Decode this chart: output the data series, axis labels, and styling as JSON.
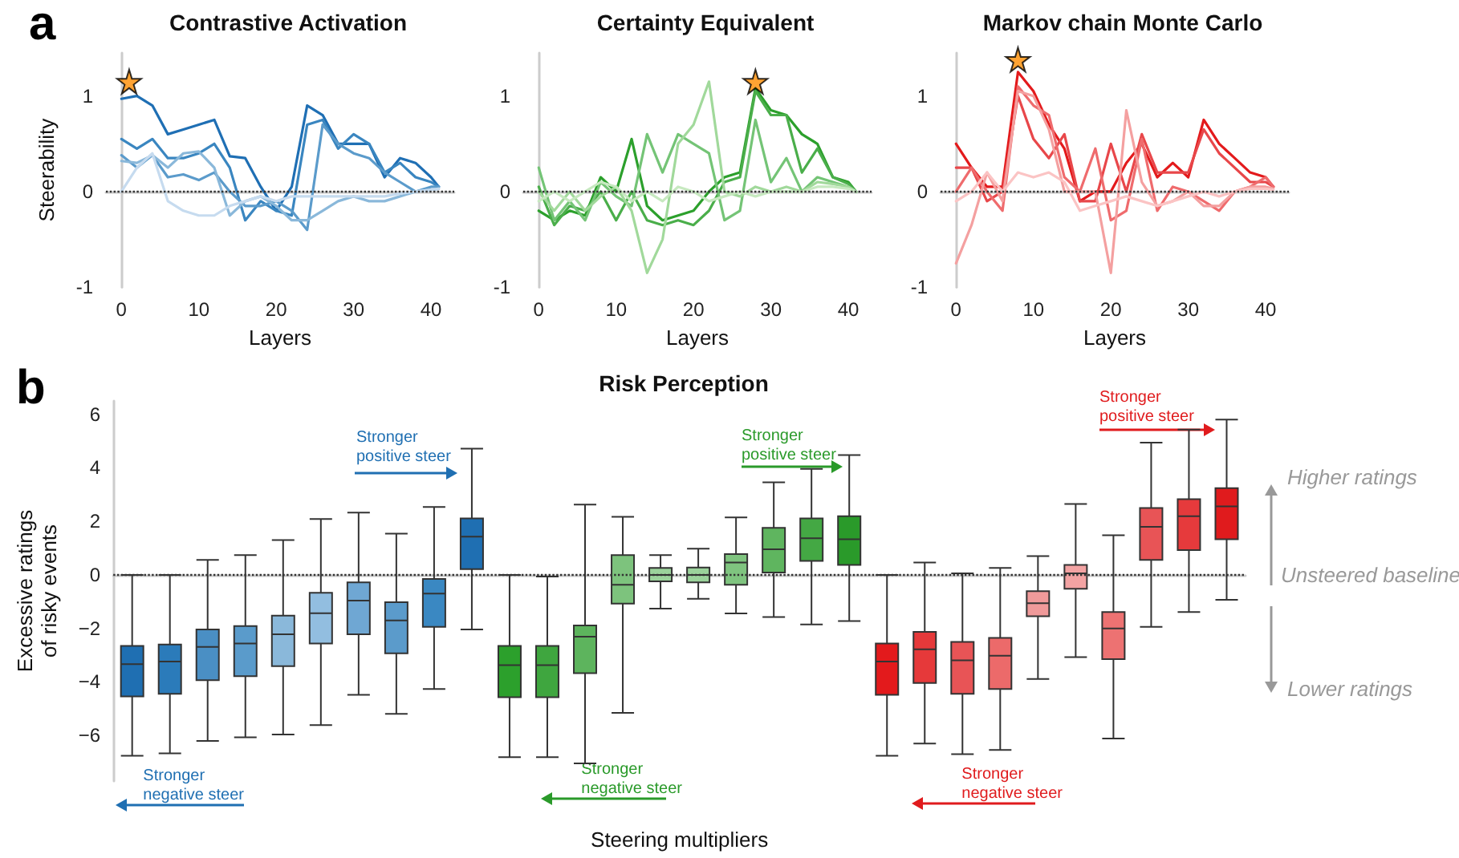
{
  "chart_data": [
    {
      "type": "line",
      "title": "Contrastive Activation",
      "xlabel": "Layers",
      "ylabel": "Steerability",
      "annotations": [
        "a"
      ],
      "marker": "none",
      "x": [
        0,
        2,
        4,
        6,
        8,
        10,
        12,
        14,
        16,
        18,
        20,
        22,
        24,
        26,
        28,
        30,
        32,
        34,
        36,
        38,
        40,
        41
      ],
      "series": [
        {
          "color": "#1f6fb4",
          "values": [
            0.97,
            1.0,
            0.9,
            0.6,
            0.65,
            0.7,
            0.75,
            0.37,
            0.35,
            0.05,
            -0.2,
            0.05,
            0.9,
            0.8,
            0.5,
            0.5,
            0.5,
            0.15,
            0.35,
            0.3,
            0.15,
            0.05
          ]
        },
        {
          "color": "#3a86c0",
          "values": [
            0.55,
            0.45,
            0.55,
            0.35,
            0.35,
            0.4,
            0.5,
            0.25,
            -0.3,
            -0.1,
            -0.2,
            -0.25,
            0.7,
            0.75,
            0.45,
            0.6,
            0.5,
            0.2,
            0.3,
            0.15,
            0.1,
            0.05
          ]
        },
        {
          "color": "#5b9bcb",
          "values": [
            0.38,
            0.25,
            0.38,
            0.15,
            0.18,
            0.12,
            0.2,
            0.0,
            -0.15,
            -0.15,
            -0.1,
            -0.2,
            -0.4,
            0.7,
            0.5,
            0.4,
            0.35,
            0.2,
            0.1,
            0.0,
            0.05,
            0.05
          ]
        },
        {
          "color": "#8ab8da",
          "values": [
            0.32,
            0.3,
            0.38,
            0.25,
            0.4,
            0.42,
            0.25,
            -0.25,
            -0.1,
            -0.05,
            -0.15,
            -0.3,
            -0.3,
            -0.2,
            -0.1,
            -0.05,
            -0.1,
            -0.1,
            -0.05,
            0.0,
            0.02,
            0.03
          ]
        },
        {
          "color": "#c6dbef",
          "values": [
            0.0,
            0.25,
            0.4,
            -0.1,
            -0.2,
            -0.25,
            -0.25,
            -0.15,
            -0.1,
            -0.05,
            -0.1,
            -0.05,
            -0.05,
            -0.05,
            -0.05,
            -0.05,
            -0.05,
            -0.05,
            -0.02,
            0.0,
            0.02,
            0.03
          ]
        },
        {
          "type": "scatter",
          "marker": "star",
          "color": "#ff8c00",
          "x": [
            1
          ],
          "values": [
            1.15
          ]
        }
      ],
      "xlim": [
        -2,
        43
      ],
      "xticks": [
        0,
        10,
        20,
        30,
        40
      ],
      "ylim": [
        -1,
        1.45
      ],
      "yticks": [
        -1,
        0,
        1
      ],
      "ref_lines": [
        {
          "axis": "y",
          "value": 0,
          "color": "#333333",
          "line_style": "dotted"
        }
      ]
    },
    {
      "type": "line",
      "title": "Certainty Equivalent",
      "xlabel": "Layers",
      "marker": "none",
      "x": [
        0,
        2,
        4,
        6,
        8,
        10,
        12,
        14,
        16,
        18,
        20,
        22,
        24,
        26,
        28,
        30,
        32,
        34,
        36,
        38,
        40,
        41
      ],
      "series": [
        {
          "color": "#2ca02c",
          "values": [
            -0.2,
            -0.3,
            -0.2,
            -0.25,
            0.15,
            0.0,
            0.55,
            -0.15,
            -0.3,
            -0.25,
            -0.2,
            0.0,
            0.15,
            0.2,
            1.08,
            0.85,
            0.8,
            0.6,
            0.5,
            0.15,
            0.1,
            0.0
          ]
        },
        {
          "color": "#4aae4a",
          "values": [
            0.05,
            -0.35,
            -0.15,
            -0.2,
            0.0,
            -0.3,
            0.0,
            -0.3,
            -0.35,
            -0.3,
            -0.35,
            -0.2,
            0.1,
            0.15,
            1.05,
            0.8,
            0.8,
            0.2,
            0.45,
            0.15,
            0.08,
            0.0
          ]
        },
        {
          "color": "#74c476",
          "values": [
            0.25,
            -0.3,
            -0.1,
            -0.3,
            0.1,
            -0.05,
            -0.15,
            0.6,
            0.2,
            0.6,
            0.5,
            0.4,
            -0.3,
            -0.2,
            0.75,
            0.1,
            0.35,
            0.0,
            0.15,
            0.1,
            0.05,
            0.0
          ]
        },
        {
          "color": "#a1d99b",
          "values": [
            0.0,
            -0.2,
            0.0,
            -0.2,
            -0.05,
            0.05,
            -0.2,
            -0.85,
            -0.5,
            0.5,
            0.7,
            1.15,
            0.0,
            -0.05,
            0.05,
            0.0,
            0.05,
            0.0,
            0.1,
            0.08,
            0.05,
            0.0
          ]
        },
        {
          "color": "#c7e9c0",
          "values": [
            -0.1,
            0.0,
            -0.1,
            0.0,
            0.1,
            0.05,
            -0.1,
            0.0,
            -0.1,
            0.05,
            0.0,
            -0.1,
            -0.05,
            0.0,
            -0.05,
            0.0,
            0.0,
            0.0,
            0.05,
            0.05,
            0.03,
            0.0
          ]
        },
        {
          "type": "scatter",
          "marker": "star",
          "color": "#ff8c00",
          "x": [
            28
          ],
          "values": [
            1.15
          ]
        }
      ],
      "xlim": [
        -2,
        43
      ],
      "xticks": [
        0,
        10,
        20,
        30,
        40
      ],
      "ylim": [
        -1,
        1.45
      ],
      "yticks": [
        -1,
        0,
        1
      ],
      "ref_lines": [
        {
          "axis": "y",
          "value": 0,
          "color": "#333333",
          "line_style": "dotted"
        }
      ]
    },
    {
      "type": "line",
      "title": "Markov chain Monte Carlo",
      "xlabel": "Layers",
      "marker": "none",
      "x": [
        0,
        2,
        4,
        6,
        8,
        10,
        12,
        14,
        16,
        18,
        20,
        22,
        24,
        26,
        28,
        30,
        32,
        34,
        36,
        38,
        40,
        41
      ],
      "series": [
        {
          "color": "#e31a1c",
          "values": [
            0.5,
            0.25,
            0.05,
            0.05,
            1.25,
            1.05,
            0.7,
            0.45,
            -0.1,
            0.0,
            0.0,
            0.3,
            0.5,
            0.15,
            0.3,
            0.15,
            0.75,
            0.5,
            0.35,
            0.2,
            0.15,
            0.05
          ]
        },
        {
          "color": "#e8474a",
          "values": [
            0.25,
            0.25,
            -0.1,
            0.0,
            1.0,
            0.55,
            0.35,
            0.6,
            -0.1,
            -0.1,
            0.5,
            0.0,
            0.6,
            0.2,
            0.2,
            0.2,
            0.65,
            0.4,
            0.25,
            0.1,
            0.1,
            0.05
          ]
        },
        {
          "color": "#ef6b6d",
          "values": [
            0.0,
            0.25,
            0.0,
            -0.2,
            1.1,
            0.9,
            0.8,
            0.15,
            0.0,
            0.45,
            -0.3,
            -0.2,
            0.55,
            -0.2,
            0.05,
            0.0,
            -0.1,
            -0.2,
            0.0,
            0.05,
            0.15,
            0.05
          ]
        },
        {
          "color": "#f4a0a0",
          "values": [
            -0.75,
            -0.35,
            0.2,
            -0.1,
            1.05,
            1.0,
            0.65,
            0.0,
            0.0,
            0.0,
            -0.85,
            0.85,
            0.1,
            -0.15,
            -0.1,
            0.0,
            -0.15,
            -0.15,
            0.0,
            0.05,
            0.05,
            0.03
          ]
        },
        {
          "color": "#fbc4c4",
          "values": [
            -0.1,
            0.0,
            0.2,
            0.0,
            0.2,
            0.15,
            0.2,
            0.1,
            -0.2,
            -0.15,
            -0.1,
            -0.05,
            -0.1,
            -0.15,
            -0.1,
            -0.05,
            0.0,
            -0.05,
            0.0,
            0.03,
            0.03,
            0.02
          ]
        },
        {
          "type": "scatter",
          "marker": "star",
          "color": "#ff8c00",
          "x": [
            8
          ],
          "values": [
            1.38
          ]
        }
      ],
      "xlim": [
        -2,
        43
      ],
      "xticks": [
        0,
        10,
        20,
        30,
        40
      ],
      "ylim": [
        -1,
        1.45
      ],
      "yticks": [
        -1,
        0,
        1
      ],
      "ref_lines": [
        {
          "axis": "y",
          "value": 0,
          "color": "#333333",
          "line_style": "dotted"
        }
      ]
    },
    {
      "type": "box",
      "title": "Risk Perception",
      "xlabel": "Steering multipliers",
      "ylabel": "Excessive ratings\nof risky events",
      "annotations": [
        "b",
        "Stronger\npositive steer",
        "Stronger\nnegative steer",
        "Stronger\npositive steer",
        "Stronger\nnegative steer",
        "Stronger\npositive steer",
        "Stronger\nnegative steer",
        "Higher ratings",
        "Lower ratings"
      ],
      "categories": [
        null,
        null,
        null,
        null,
        null,
        null,
        null,
        null,
        null,
        null,
        null,
        null,
        null,
        null,
        null,
        null,
        null,
        null,
        null,
        null,
        null,
        null,
        null,
        null,
        null,
        null,
        null,
        null,
        null,
        null
      ],
      "colors": [
        "#1f6fb2",
        "#2b7bba",
        "#4a8fc4",
        "#5a9bcb",
        "#8ab8da",
        "#92bee0",
        "#6fa7d3",
        "#5b9bcb",
        "#3a88c2",
        "#1f6fb2",
        "#2ca02c",
        "#3fa63f",
        "#5db45d",
        "#7dc37d",
        "#9bd29b",
        "#9bd29b",
        "#7fc47f",
        "#5fb55f",
        "#44a844",
        "#2a9a2a",
        "#e31a1c",
        "#e6393a",
        "#e85456",
        "#ec6a6a",
        "#f09a9a",
        "#f3a3a3",
        "#ed7272",
        "#e85456",
        "#e63a3c",
        "#e01b1d"
      ],
      "boxes": [
        {
          "low": -6.76,
          "q1": -4.54,
          "median": -3.33,
          "q3": -2.65,
          "high": 0
        },
        {
          "low": -6.67,
          "q1": -4.44,
          "median": -3.24,
          "q3": -2.6,
          "high": 0
        },
        {
          "low": -6.2,
          "q1": -3.93,
          "median": -2.69,
          "q3": -2.04,
          "high": 0.56
        },
        {
          "low": -6.07,
          "q1": -3.78,
          "median": -2.56,
          "q3": -1.91,
          "high": 0.74
        },
        {
          "low": -5.96,
          "q1": -3.41,
          "median": -2.22,
          "q3": -1.52,
          "high": 1.3
        },
        {
          "low": -5.61,
          "q1": -2.56,
          "median": -1.43,
          "q3": -0.67,
          "high": 2.09
        },
        {
          "low": -4.48,
          "q1": -2.22,
          "median": -0.96,
          "q3": -0.28,
          "high": 2.33
        },
        {
          "low": -5.19,
          "q1": -2.93,
          "median": -1.7,
          "q3": -1.02,
          "high": 1.54
        },
        {
          "low": -4.26,
          "q1": -1.94,
          "median": -0.7,
          "q3": -0.15,
          "high": 2.54
        },
        {
          "low": -2.04,
          "q1": 0.22,
          "median": 1.43,
          "q3": 2.11,
          "high": 4.72
        },
        {
          "low": -6.81,
          "q1": -4.57,
          "median": -3.37,
          "q3": -2.65,
          "high": 0
        },
        {
          "low": -6.81,
          "q1": -4.57,
          "median": -3.37,
          "q3": -2.65,
          "high": -0.06
        },
        {
          "low": -7.04,
          "q1": -3.67,
          "median": -2.31,
          "q3": -1.89,
          "high": 2.63
        },
        {
          "low": -5.15,
          "q1": -1.07,
          "median": -0.37,
          "q3": 0.74,
          "high": 2.17
        },
        {
          "low": -1.26,
          "q1": -0.24,
          "median": 0,
          "q3": 0.26,
          "high": 0.74
        },
        {
          "low": -0.89,
          "q1": -0.28,
          "median": 0,
          "q3": 0.28,
          "high": 0.98
        },
        {
          "low": -1.44,
          "q1": -0.37,
          "median": 0.46,
          "q3": 0.78,
          "high": 2.15
        },
        {
          "low": -1.57,
          "q1": 0.09,
          "median": 0.96,
          "q3": 1.76,
          "high": 3.46
        },
        {
          "low": -1.85,
          "q1": 0.52,
          "median": 1.37,
          "q3": 2.11,
          "high": 3.96
        },
        {
          "low": -1.72,
          "q1": 0.37,
          "median": 1.33,
          "q3": 2.19,
          "high": 4.48
        },
        {
          "low": -6.76,
          "q1": -4.48,
          "median": -3.24,
          "q3": -2.56,
          "high": 0
        },
        {
          "low": -6.3,
          "q1": -4.04,
          "median": -2.78,
          "q3": -2.13,
          "high": 0.46
        },
        {
          "low": -6.7,
          "q1": -4.44,
          "median": -3.19,
          "q3": -2.5,
          "high": 0.06
        },
        {
          "low": -6.54,
          "q1": -4.26,
          "median": -3.02,
          "q3": -2.35,
          "high": 0.26
        },
        {
          "low": -3.89,
          "q1": -1.54,
          "median": -1.06,
          "q3": -0.61,
          "high": 0.7
        },
        {
          "low": -3.07,
          "q1": -0.52,
          "median": 0.06,
          "q3": 0.37,
          "high": 2.65
        },
        {
          "low": -6.11,
          "q1": -3.15,
          "median": -2.0,
          "q3": -1.39,
          "high": 1.48
        },
        {
          "low": -1.94,
          "q1": 0.56,
          "median": 1.8,
          "q3": 2.5,
          "high": 4.94
        },
        {
          "low": -1.39,
          "q1": 0.93,
          "median": 2.19,
          "q3": 2.83,
          "high": 5.43
        },
        {
          "low": -0.93,
          "q1": 1.33,
          "median": 2.56,
          "q3": 3.24,
          "high": 5.8
        }
      ],
      "ylim": [
        -7.7,
        6.5
      ],
      "yticks": [
        {
          "value": -6,
          "label": "−6"
        },
        {
          "value": -4,
          "label": "−4"
        },
        {
          "value": -2,
          "label": "−2"
        },
        0,
        2,
        4,
        6
      ],
      "tick_labels": "y",
      "ref_lines": [
        {
          "axis": "y",
          "value": 0,
          "label": "Unsteered baseline",
          "color": "#333333",
          "line_style": "dotted"
        }
      ]
    }
  ]
}
